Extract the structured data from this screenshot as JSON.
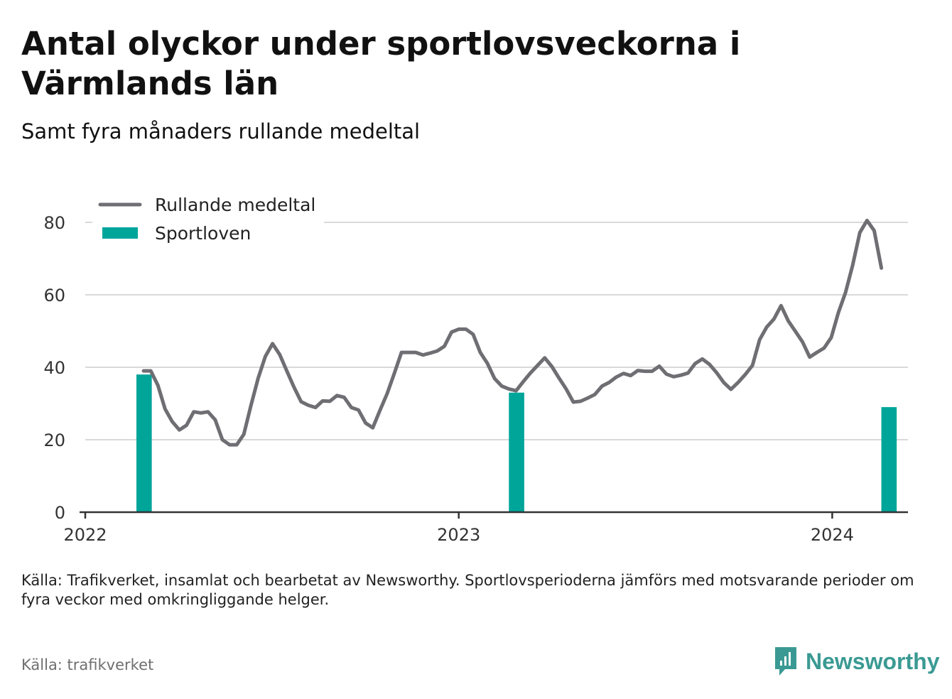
{
  "chart_data": {
    "type": "bar+line",
    "title": "Antal olyckor under sportlovsveckorna i Värmlands län",
    "subtitle": "Samt fyra månaders rullande medeltal",
    "xlabel": "",
    "ylabel": "",
    "ylim": [
      0,
      90
    ],
    "yticks": [
      0,
      20,
      40,
      60,
      80
    ],
    "xlim": [
      "2022-01-01",
      "2024-03-15"
    ],
    "xticks": [
      {
        "date": "2022-01-01",
        "label": "2022"
      },
      {
        "date": "2023-01-01",
        "label": "2023"
      },
      {
        "date": "2024-01-01",
        "label": "2024"
      }
    ],
    "grid": true,
    "legend_position": "top-left",
    "colors": {
      "line": "#6e6e73",
      "bars": "#00a59a"
    },
    "series": [
      {
        "name": "Rullande medeltal",
        "type": "line",
        "points": [
          [
            "2022-02-27",
            39
          ],
          [
            "2022-03-06",
            39
          ],
          [
            "2022-03-13",
            35
          ],
          [
            "2022-03-20",
            28.5
          ],
          [
            "2022-03-27",
            25
          ],
          [
            "2022-04-03",
            22.7
          ],
          [
            "2022-04-10",
            24
          ],
          [
            "2022-04-17",
            27.7
          ],
          [
            "2022-04-24",
            27.4
          ],
          [
            "2022-05-01",
            27.7
          ],
          [
            "2022-05-08",
            25.5
          ],
          [
            "2022-05-15",
            20
          ],
          [
            "2022-05-22",
            18.6
          ],
          [
            "2022-05-29",
            18.6
          ],
          [
            "2022-06-05",
            21.5
          ],
          [
            "2022-06-12",
            29.5
          ],
          [
            "2022-06-19",
            37
          ],
          [
            "2022-06-26",
            43
          ],
          [
            "2022-07-03",
            46.5
          ],
          [
            "2022-07-10",
            43.5
          ],
          [
            "2022-07-17",
            39
          ],
          [
            "2022-07-24",
            34.5
          ],
          [
            "2022-07-31",
            30.5
          ],
          [
            "2022-08-07",
            29.5
          ],
          [
            "2022-08-14",
            28.9
          ],
          [
            "2022-08-21",
            30.7
          ],
          [
            "2022-08-28",
            30.6
          ],
          [
            "2022-09-04",
            32.2
          ],
          [
            "2022-09-11",
            31.7
          ],
          [
            "2022-09-18",
            28.9
          ],
          [
            "2022-09-25",
            28.2
          ],
          [
            "2022-10-02",
            24.6
          ],
          [
            "2022-10-09",
            23.3
          ],
          [
            "2022-10-16",
            28.1
          ],
          [
            "2022-10-23",
            32.7
          ],
          [
            "2022-10-30",
            38.3
          ],
          [
            "2022-11-06",
            44.1
          ],
          [
            "2022-11-13",
            44.1
          ],
          [
            "2022-11-20",
            44.1
          ],
          [
            "2022-11-27",
            43.4
          ],
          [
            "2022-12-04",
            43.9
          ],
          [
            "2022-12-11",
            44.5
          ],
          [
            "2022-12-18",
            45.8
          ],
          [
            "2022-12-25",
            49.7
          ],
          [
            "2023-01-01",
            50.5
          ],
          [
            "2023-01-08",
            50.5
          ],
          [
            "2023-01-15",
            49.1
          ],
          [
            "2023-01-22",
            44.1
          ],
          [
            "2023-01-29",
            41.1
          ],
          [
            "2023-02-05",
            36.9
          ],
          [
            "2023-02-12",
            34.8
          ],
          [
            "2023-02-19",
            34
          ],
          [
            "2023-02-26",
            33.5
          ],
          [
            "2023-03-05",
            36
          ],
          [
            "2023-03-12",
            38.4
          ],
          [
            "2023-03-19",
            40.5
          ],
          [
            "2023-03-26",
            42.6
          ],
          [
            "2023-04-02",
            40.2
          ],
          [
            "2023-04-09",
            37
          ],
          [
            "2023-04-16",
            34
          ],
          [
            "2023-04-23",
            30.4
          ],
          [
            "2023-04-30",
            30.6
          ],
          [
            "2023-05-07",
            31.5
          ],
          [
            "2023-05-14",
            32.5
          ],
          [
            "2023-05-21",
            34.8
          ],
          [
            "2023-05-28",
            35.8
          ],
          [
            "2023-06-04",
            37.3
          ],
          [
            "2023-06-11",
            38.3
          ],
          [
            "2023-06-18",
            37.7
          ],
          [
            "2023-06-25",
            39.1
          ],
          [
            "2023-07-02",
            38.9
          ],
          [
            "2023-07-09",
            38.9
          ],
          [
            "2023-07-16",
            40.3
          ],
          [
            "2023-07-23",
            38.1
          ],
          [
            "2023-07-30",
            37.4
          ],
          [
            "2023-08-06",
            37.8
          ],
          [
            "2023-08-13",
            38.4
          ],
          [
            "2023-08-20",
            41
          ],
          [
            "2023-08-27",
            42.3
          ],
          [
            "2023-09-03",
            40.8
          ],
          [
            "2023-09-10",
            38.5
          ],
          [
            "2023-09-17",
            35.8
          ],
          [
            "2023-09-24",
            33.9
          ],
          [
            "2023-10-01",
            35.8
          ],
          [
            "2023-10-08",
            38
          ],
          [
            "2023-10-15",
            40.5
          ],
          [
            "2023-10-22",
            47.6
          ],
          [
            "2023-10-29",
            51.1
          ],
          [
            "2023-11-05",
            53.3
          ],
          [
            "2023-11-12",
            57
          ],
          [
            "2023-11-19",
            52.8
          ],
          [
            "2023-11-26",
            49.9
          ],
          [
            "2023-12-03",
            47
          ],
          [
            "2023-12-10",
            42.8
          ],
          [
            "2023-12-17",
            44.1
          ],
          [
            "2023-12-24",
            45.3
          ],
          [
            "2023-12-31",
            48.2
          ],
          [
            "2024-01-07",
            55.1
          ],
          [
            "2024-01-14",
            60.6
          ],
          [
            "2024-01-21",
            68.2
          ],
          [
            "2024-01-28",
            77.2
          ],
          [
            "2024-02-04",
            80.5
          ],
          [
            "2024-02-11",
            77.7
          ],
          [
            "2024-02-18",
            67.4
          ]
        ]
      },
      {
        "name": "Sportloven",
        "type": "bar",
        "bars": [
          {
            "start": "2022-02-20",
            "end": "2022-03-07",
            "value": 38
          },
          {
            "start": "2023-02-19",
            "end": "2023-03-06",
            "value": 33
          },
          {
            "start": "2024-02-18",
            "end": "2024-03-04",
            "value": 29
          }
        ]
      }
    ]
  },
  "footer": {
    "note": "Källa: Trafikverket, insamlat och bearbetat av Newsworthy. Sportlovsperioderna jämförs med motsvarande perioder om fyra veckor med omkringliggande helger.",
    "source": "Källa: trafikverket",
    "brand": "Newsworthy",
    "brand_icon": "bar-chart-speech-bubble-icon",
    "brand_color": "#3a9a93"
  }
}
